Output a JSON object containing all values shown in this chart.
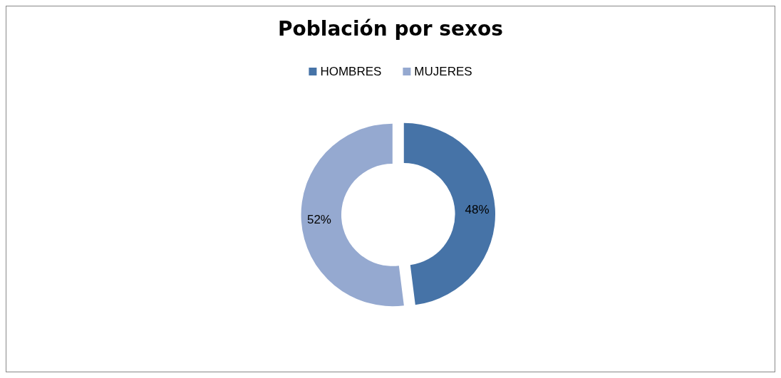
{
  "chart_data": {
    "type": "donut",
    "title": "Población por sexos",
    "categories": [
      "HOMBRES",
      "MUJERES"
    ],
    "values": [
      48,
      52
    ],
    "colors": [
      "#4673a7",
      "#95a9d0"
    ],
    "value_labels": [
      "48%",
      "52%"
    ],
    "legend": "top"
  }
}
